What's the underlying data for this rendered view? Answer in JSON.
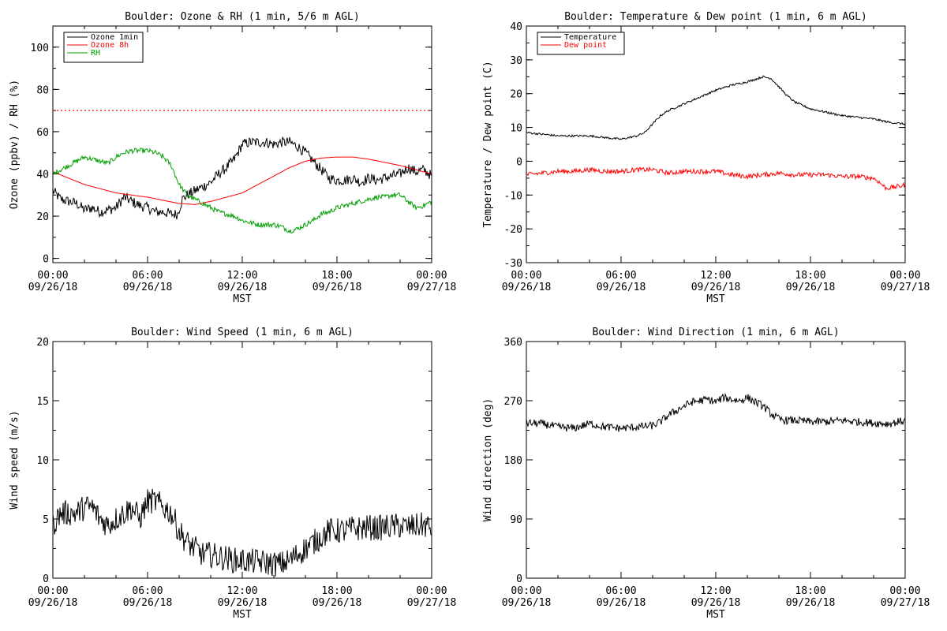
{
  "colors": {
    "black": "#000000",
    "red": "#ff0000",
    "green": "#00a000"
  },
  "x_ticks": {
    "top": [
      "00:00",
      "06:00",
      "12:00",
      "18:00",
      "00:00"
    ],
    "bottom": [
      "09/26/18",
      "09/26/18",
      "09/26/18",
      "09/26/18",
      "09/27/18"
    ],
    "xlabel": "MST"
  },
  "chart_data": [
    {
      "type": "line",
      "title": "Boulder: Ozone & RH (1 min, 5/6 m AGL)",
      "xlabel": "MST",
      "ylabel": "Ozone (ppbv) / RH (%)",
      "xlim_hours": [
        0,
        24
      ],
      "ylim": [
        -2,
        110
      ],
      "yticks": [
        0,
        20,
        40,
        60,
        80,
        100
      ],
      "reference_line": {
        "value": 70,
        "color": "#ff0000",
        "style": "dotted"
      },
      "legend_placement": "top-left",
      "series": [
        {
          "name": "Ozone 1min",
          "color": "#000000",
          "noise": 2.5,
          "x_hours": [
            0,
            0.5,
            1,
            1.5,
            2,
            2.5,
            3,
            3.5,
            4,
            4.5,
            5,
            5.5,
            6,
            6.5,
            7,
            7.5,
            7.9,
            8.2,
            8.5,
            9,
            9.5,
            10,
            10.5,
            11,
            11.5,
            12,
            12.5,
            13,
            13.5,
            14,
            14.5,
            15,
            15.5,
            16,
            16.5,
            17,
            17.5,
            18,
            18.5,
            19,
            19.5,
            20,
            20.5,
            21,
            21.5,
            22,
            22.5,
            23,
            23.5,
            24
          ],
          "values": [
            32,
            28,
            27,
            26,
            23,
            24,
            22,
            23,
            24,
            29,
            27,
            25,
            24,
            22,
            22,
            21,
            21,
            28,
            30,
            32,
            34,
            36,
            40,
            43,
            47,
            54,
            55,
            55,
            55,
            54,
            55,
            55,
            53,
            50,
            46,
            42,
            38,
            37,
            37,
            38,
            36,
            38,
            37,
            38,
            39,
            40,
            43,
            41,
            42,
            39
          ]
        },
        {
          "name": "Ozone 8h",
          "color": "#ff0000",
          "noise": 0,
          "x_hours": [
            0,
            1,
            2,
            3,
            4,
            5,
            6,
            7,
            8,
            9,
            10,
            11,
            12,
            13,
            14,
            15,
            16,
            17,
            18,
            19,
            20,
            21,
            22,
            23,
            24
          ],
          "values": [
            41,
            38,
            35,
            33,
            31,
            30,
            29,
            27.5,
            26,
            25.5,
            27,
            29,
            31,
            35,
            39,
            43,
            46,
            47.5,
            48,
            48,
            47,
            45.5,
            44,
            42,
            40
          ]
        },
        {
          "name": "RH",
          "color": "#00a000",
          "noise": 1.2,
          "x_hours": [
            0,
            0.5,
            1,
            1.5,
            2,
            2.5,
            3,
            3.5,
            4,
            4.5,
            5,
            5.5,
            6,
            6.5,
            7,
            7.5,
            8,
            8.5,
            9,
            9.5,
            10,
            10.5,
            11,
            11.5,
            12,
            12.5,
            13,
            13.5,
            14,
            14.5,
            15,
            15.5,
            16,
            16.5,
            17,
            17.5,
            18,
            18.5,
            19,
            19.5,
            20,
            20.5,
            21,
            21.5,
            22,
            22.5,
            23,
            23.5,
            24
          ],
          "values": [
            40,
            42,
            44,
            46,
            48,
            47,
            46,
            45,
            48,
            50,
            51,
            51,
            51,
            50,
            48,
            44,
            35,
            30,
            28,
            26,
            24,
            22,
            21,
            20,
            18,
            17,
            16,
            16,
            16,
            15,
            13,
            14,
            16,
            18,
            21,
            22,
            24,
            25,
            26,
            27,
            28,
            29,
            29,
            30,
            30,
            27,
            24,
            25,
            27
          ]
        }
      ]
    },
    {
      "type": "line",
      "title": "Boulder: Temperature & Dew point (1 min, 6 m AGL)",
      "xlabel": "MST",
      "ylabel": "Temperature / Dew point (C)",
      "xlim_hours": [
        0,
        24
      ],
      "ylim": [
        -30,
        40
      ],
      "yticks": [
        -30,
        -20,
        -10,
        0,
        10,
        20,
        30,
        40
      ],
      "legend_placement": "top-left",
      "series": [
        {
          "name": "Temperature",
          "color": "#000000",
          "noise": 0.3,
          "x_hours": [
            0,
            1,
            2,
            3,
            4,
            5,
            6,
            7,
            7.5,
            8,
            8.5,
            9,
            10,
            11,
            12,
            13,
            14,
            15,
            15.5,
            16,
            16.5,
            17,
            18,
            19,
            20,
            21,
            22,
            23,
            24
          ],
          "values": [
            8.5,
            8,
            7.5,
            7.5,
            7.5,
            7,
            6.5,
            7.5,
            8.5,
            11,
            13.5,
            15,
            17,
            19,
            21,
            22.5,
            23.5,
            25,
            24.5,
            22,
            19.5,
            17.5,
            15.5,
            14.5,
            13.5,
            13,
            12.5,
            11.5,
            11
          ]
        },
        {
          "name": "Dew point",
          "color": "#ff0000",
          "noise": 0.7,
          "x_hours": [
            0,
            1,
            2,
            3,
            4,
            5,
            6,
            7,
            8,
            9,
            10,
            11,
            12,
            13,
            14,
            15,
            16,
            17,
            18,
            19,
            20,
            21,
            22,
            22.3,
            22.8,
            23.5,
            24
          ],
          "values": [
            -4,
            -3.5,
            -3,
            -3,
            -2.5,
            -3,
            -3,
            -2.5,
            -2.5,
            -3.5,
            -3,
            -3,
            -3,
            -4,
            -4.5,
            -4,
            -3.5,
            -4,
            -4,
            -4,
            -4.5,
            -4.5,
            -5,
            -6,
            -8,
            -7.5,
            -7
          ]
        }
      ]
    },
    {
      "type": "line",
      "title": "Boulder: Wind Speed (1 min, 6 m AGL)",
      "xlabel": "MST",
      "ylabel": "Wind speed (m/s)",
      "xlim_hours": [
        0,
        24
      ],
      "ylim": [
        0,
        20
      ],
      "yticks": [
        0,
        5,
        10,
        15,
        20
      ],
      "series": [
        {
          "name": "",
          "color": "#000000",
          "noise": 1.1,
          "x_hours": [
            0,
            0.5,
            1,
            1.5,
            2,
            2.5,
            3,
            3.5,
            4,
            4.5,
            5,
            5.5,
            6,
            6.5,
            7,
            7.5,
            8,
            8.5,
            9,
            9.5,
            10,
            10.5,
            11,
            11.5,
            12,
            12.5,
            13,
            13.5,
            14,
            14.5,
            15,
            15.5,
            16,
            16.5,
            17,
            17.5,
            18,
            18.5,
            19,
            19.5,
            20,
            20.5,
            21,
            21.5,
            22,
            22.5,
            23,
            23.5,
            24
          ],
          "values": [
            4.5,
            5.5,
            5.5,
            5.5,
            6,
            6,
            5,
            4.5,
            5,
            5.5,
            6,
            5,
            6.5,
            6.5,
            6,
            5.5,
            4,
            3,
            2.5,
            2,
            2,
            1.8,
            1.7,
            1.5,
            1.5,
            1.4,
            1.4,
            1.3,
            1.2,
            1.2,
            1.5,
            2,
            2.5,
            3,
            3.5,
            4,
            4,
            4,
            4.2,
            4.2,
            4.3,
            4.2,
            4.3,
            4.4,
            4.4,
            4.3,
            4.4,
            4.5,
            4.2
          ]
        }
      ]
    },
    {
      "type": "line",
      "title": "Boulder: Wind Direction (1 min, 6 m AGL)",
      "xlabel": "MST",
      "ylabel": "Wind direction (deg)",
      "xlim_hours": [
        0,
        24
      ],
      "ylim": [
        0,
        360
      ],
      "yticks": [
        0,
        90,
        180,
        270,
        360
      ],
      "series": [
        {
          "name": "",
          "color": "#000000",
          "noise": 6,
          "x_hours": [
            0,
            1,
            2,
            3,
            4,
            5,
            6,
            7,
            8,
            8.5,
            9,
            9.5,
            10,
            10.5,
            11,
            11.5,
            12,
            12.5,
            13,
            13.5,
            14,
            14.5,
            15,
            15.5,
            16,
            16.5,
            17,
            18,
            19,
            20,
            21,
            22,
            23,
            24
          ],
          "values": [
            236,
            235,
            230,
            228,
            235,
            230,
            228,
            230,
            232,
            238,
            248,
            255,
            262,
            268,
            270,
            272,
            268,
            275,
            272,
            270,
            275,
            268,
            262,
            250,
            242,
            240,
            240,
            238,
            238,
            240,
            238,
            236,
            235,
            240
          ]
        }
      ]
    }
  ]
}
